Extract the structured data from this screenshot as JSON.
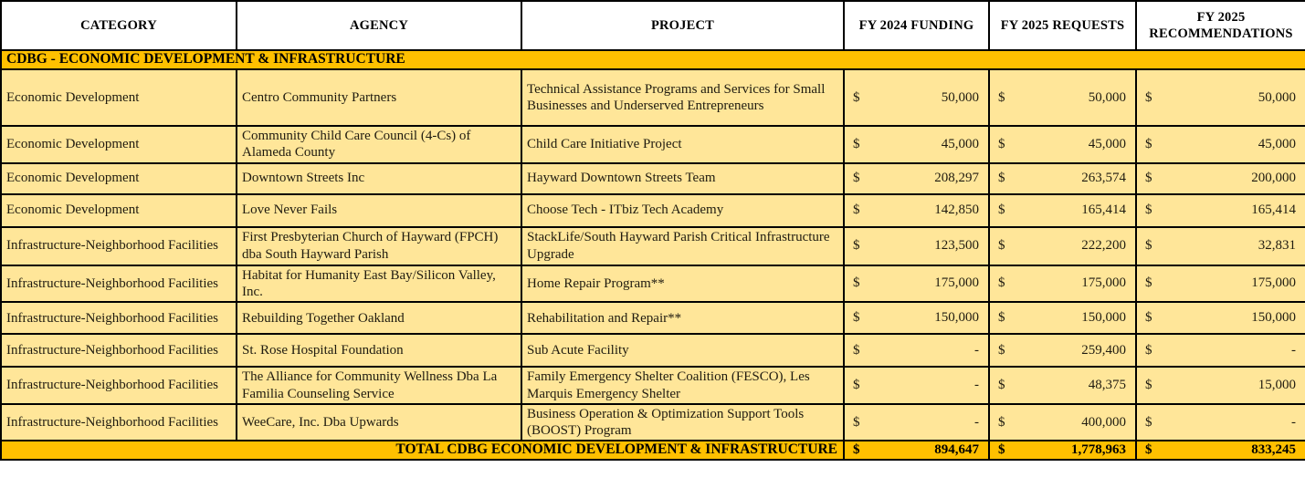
{
  "table": {
    "currency_symbol": "$",
    "columns": [
      {
        "label": "CATEGORY"
      },
      {
        "label": "AGENCY"
      },
      {
        "label": "PROJECT"
      },
      {
        "label": "FY 2024 FUNDING"
      },
      {
        "label": "FY 2025 REQUESTS"
      },
      {
        "label": "FY 2025 RECOMMENDATIONS"
      }
    ],
    "section_header": "CDBG - ECONOMIC DEVELOPMENT & INFRASTRUCTURE",
    "rows": [
      {
        "category": "Economic Development",
        "agency": "Centro Community Partners",
        "project": "Technical Assistance Programs and Services for Small Businesses and Underserved Entrepreneurs",
        "fy2024_funding": "50,000",
        "fy2025_requests": "50,000",
        "fy2025_recommendations": "50,000"
      },
      {
        "category": "Economic Development",
        "agency": "Community Child Care Council (4-Cs) of Alameda County",
        "project": "Child Care Initiative Project",
        "fy2024_funding": "45,000",
        "fy2025_requests": "45,000",
        "fy2025_recommendations": "45,000"
      },
      {
        "category": "Economic Development",
        "agency": "Downtown Streets Inc",
        "project": "Hayward Downtown Streets Team",
        "fy2024_funding": "208,297",
        "fy2025_requests": "263,574",
        "fy2025_recommendations": "200,000"
      },
      {
        "category": "Economic Development",
        "agency": "Love Never Fails",
        "project": "Choose Tech - ITbiz Tech Academy",
        "fy2024_funding": "142,850",
        "fy2025_requests": "165,414",
        "fy2025_recommendations": "165,414"
      },
      {
        "category": "Infrastructure-Neighborhood Facilities",
        "agency": "First Presbyterian Church of Hayward (FPCH) dba South Hayward Parish",
        "project": "StackLife/South Hayward Parish Critical Infrastructure Upgrade",
        "fy2024_funding": "123,500",
        "fy2025_requests": "222,200",
        "fy2025_recommendations": "32,831"
      },
      {
        "category": "Infrastructure-Neighborhood Facilities",
        "agency": "Habitat for Humanity East Bay/Silicon Valley, Inc.",
        "project": "Home Repair Program**",
        "fy2024_funding": "175,000",
        "fy2025_requests": "175,000",
        "fy2025_recommendations": "175,000"
      },
      {
        "category": "Infrastructure-Neighborhood Facilities",
        "agency": "Rebuilding Together Oakland",
        "project": "Rehabilitation and Repair**",
        "fy2024_funding": "150,000",
        "fy2025_requests": "150,000",
        "fy2025_recommendations": "150,000"
      },
      {
        "category": "Infrastructure-Neighborhood Facilities",
        "agency": "St. Rose Hospital Foundation",
        "project": "Sub Acute Facility",
        "fy2024_funding": "-",
        "fy2025_requests": "259,400",
        "fy2025_recommendations": "-"
      },
      {
        "category": "Infrastructure-Neighborhood Facilities",
        "agency": "The Alliance for Community Wellness Dba La Familia Counseling Service",
        "project": "Family Emergency Shelter Coalition (FESCO), Les Marquis Emergency Shelter",
        "fy2024_funding": "-",
        "fy2025_requests": "48,375",
        "fy2025_recommendations": "15,000"
      },
      {
        "category": "Infrastructure-Neighborhood Facilities",
        "agency": "WeeCare, Inc. Dba Upwards",
        "project": "Business Operation & Optimization Support Tools (BOOST) Program",
        "fy2024_funding": "-",
        "fy2025_requests": "400,000",
        "fy2025_recommendations": "-"
      }
    ],
    "total_row": {
      "label": "TOTAL CDBG ECONOMIC DEVELOPMENT & INFRASTRUCTURE",
      "fy2024_funding": "894,647",
      "fy2025_requests": "1,778,963",
      "fy2025_recommendations": "833,245"
    },
    "colors": {
      "section_bg": "#FFC000",
      "row_bg": "#FFE699",
      "header_bg": "#FFFFFF",
      "border": "#000000"
    }
  }
}
